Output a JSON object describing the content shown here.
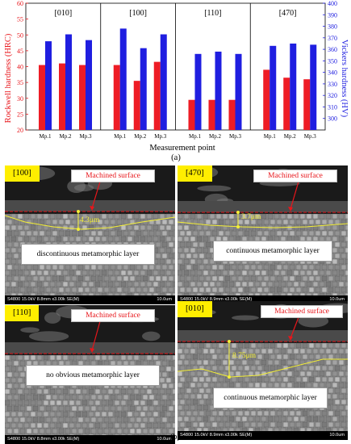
{
  "figure_a": {
    "caption": "(a)",
    "chart_data": {
      "type": "bar",
      "panels": [
        "[010]",
        "[100]",
        "[110]",
        "[470]"
      ],
      "categories": [
        "Mp.1",
        "Mp.2",
        "Mp.3"
      ],
      "xlabel": "Measurement point",
      "ylabel_left": "Rockwell hardness (HRC)",
      "ylabel_right": "Vickers hardness (HV)",
      "ylim_left": [
        20,
        60
      ],
      "ylim_right": [
        290,
        400
      ],
      "yticks_left": [
        20,
        25,
        30,
        35,
        40,
        45,
        50,
        55,
        60
      ],
      "yticks_right": [
        300,
        310,
        320,
        330,
        340,
        350,
        360,
        370,
        380,
        390,
        400
      ],
      "series": [
        {
          "axis": "left",
          "color": "#ee1c25",
          "values": [
            [
              40.5,
              41.0,
              40.5
            ],
            [
              40.5,
              35.5,
              41.5
            ],
            [
              29.5,
              29.5,
              29.5
            ],
            [
              39.0,
              36.5,
              36.0
            ]
          ]
        },
        {
          "axis": "right",
          "color": "#1f1ee0",
          "values": [
            [
              367,
              373,
              368
            ],
            [
              378,
              361,
              373
            ],
            [
              356,
              358,
              356
            ],
            [
              363,
              365,
              364
            ]
          ]
        }
      ]
    }
  },
  "figure_b": {
    "caption": "(b)",
    "panels": [
      {
        "orientation": "[100]",
        "surface_label": "Machined surface",
        "depth_label": "4.3μm",
        "layer_label": "discontinuous metamorphic layer",
        "info": "S4800 15.0kV 8.8mm x3.00k SE(M)",
        "scale": "10.0um"
      },
      {
        "orientation": "[470]",
        "surface_label": "Machined surface",
        "depth_label": "3.7μm",
        "layer_label": "continuous metamorphic layer",
        "info": "S4800 15.0kV 8.9mm x3.00k SE(M)",
        "scale": "10.0um"
      },
      {
        "orientation": "[110]",
        "surface_label": "Machined surface",
        "depth_label": "",
        "layer_label": "no obvious metamorphic layer",
        "info": "S4800 15.0kV 8.8mm x3.00k SE(M)",
        "scale": "10.0um"
      },
      {
        "orientation": "[010]",
        "surface_label": "Machined surface",
        "depth_label": "8.75μm",
        "layer_label": "continuous metamorphic layer",
        "info": "S4800 15.0kV 8.9mm x3.00k SE(M)",
        "scale": "10.0um"
      }
    ],
    "colors": {
      "surface_line": "#e8161b",
      "layer_outline": "#f4ef36",
      "label_text": "#e8161b"
    }
  }
}
